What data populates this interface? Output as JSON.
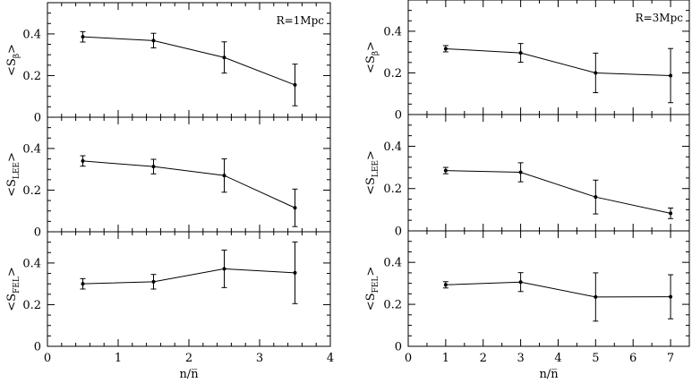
{
  "chart_data": {
    "type": "line",
    "x_axis_label": "n/n̅",
    "columns": [
      {
        "annotation": "R=1Mpc",
        "xlim": [
          0,
          4
        ],
        "xticks": [
          0,
          1,
          2,
          3,
          4
        ],
        "x": [
          0.5,
          1.5,
          2.5,
          3.5
        ],
        "panels": [
          {
            "ylabel_base": "<S",
            "ylabel_sub": "β",
            "ylabel_end": ">",
            "ylim": [
              0,
              0.55
            ],
            "yticks": [
              0,
              0.2,
              0.4
            ],
            "values": [
              0.386,
              0.368,
              0.287,
              0.155
            ],
            "errors": [
              0.025,
              0.035,
              0.075,
              0.1
            ]
          },
          {
            "ylabel_base": "<S",
            "ylabel_sub": "LEE",
            "ylabel_end": ">",
            "ylim": [
              0,
              0.55
            ],
            "yticks": [
              0,
              0.2,
              0.4
            ],
            "values": [
              0.34,
              0.313,
              0.27,
              0.115
            ],
            "errors": [
              0.025,
              0.035,
              0.08,
              0.09
            ]
          },
          {
            "ylabel_base": "<S",
            "ylabel_sub": "FEL",
            "ylabel_end": ">",
            "ylim": [
              0,
              0.55
            ],
            "yticks": [
              0,
              0.2,
              0.4
            ],
            "values": [
              0.3,
              0.31,
              0.372,
              0.353
            ],
            "errors": [
              0.025,
              0.035,
              0.09,
              0.148
            ]
          }
        ]
      },
      {
        "annotation": "R=3Mpc",
        "xlim": [
          0,
          7.5
        ],
        "xticks": [
          0,
          1,
          2,
          3,
          4,
          5,
          6,
          7
        ],
        "x": [
          1,
          3,
          5,
          7
        ],
        "panels": [
          {
            "ylabel_base": "<S",
            "ylabel_sub": "β",
            "ylabel_end": ">",
            "ylim": [
              0,
              0.55
            ],
            "yticks": [
              0,
              0.2,
              0.4
            ],
            "values": [
              0.316,
              0.296,
              0.2,
              0.187
            ],
            "errors": [
              0.015,
              0.045,
              0.095,
              0.13
            ]
          },
          {
            "ylabel_base": "<S",
            "ylabel_sub": "LEE",
            "ylabel_end": ">",
            "ylim": [
              0,
              0.55
            ],
            "yticks": [
              0,
              0.2,
              0.4
            ],
            "values": [
              0.285,
              0.277,
              0.16,
              0.083
            ],
            "errors": [
              0.015,
              0.045,
              0.08,
              0.025
            ]
          },
          {
            "ylabel_base": "<S",
            "ylabel_sub": "FEL",
            "ylabel_end": ">",
            "ylim": [
              0,
              0.55
            ],
            "yticks": [
              0,
              0.2,
              0.4
            ],
            "values": [
              0.293,
              0.306,
              0.235,
              0.236
            ],
            "errors": [
              0.015,
              0.045,
              0.115,
              0.105
            ]
          }
        ]
      }
    ]
  }
}
